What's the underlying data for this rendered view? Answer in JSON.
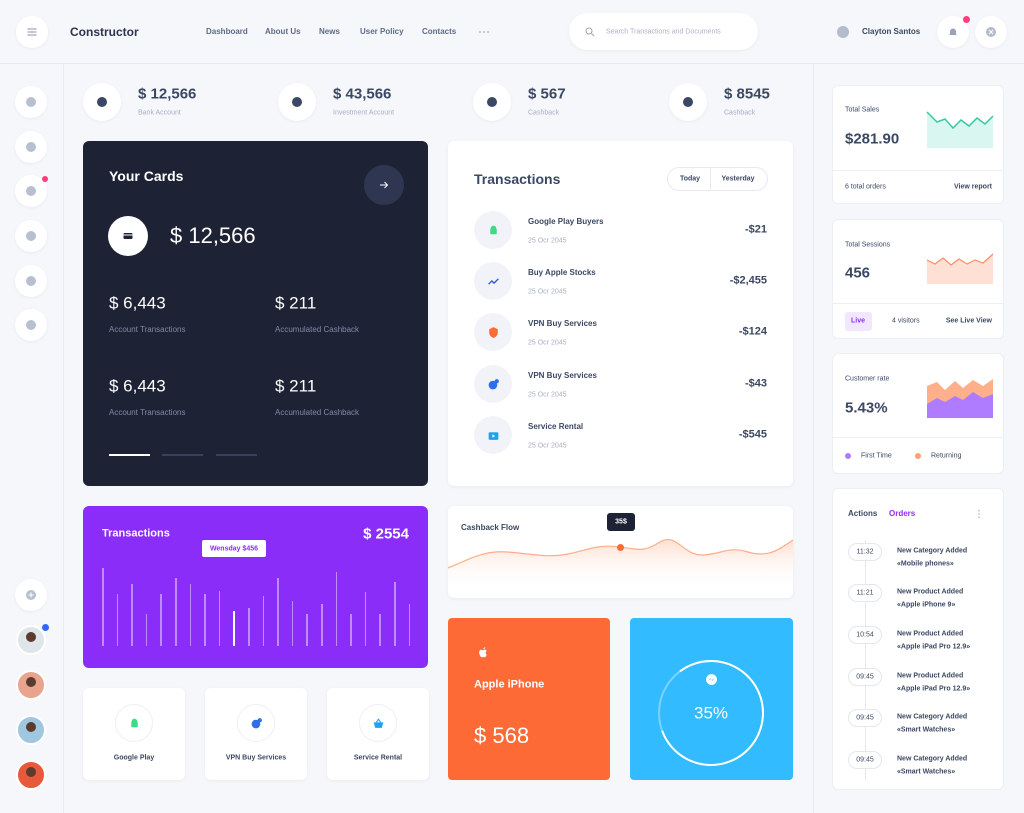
{
  "header": {
    "brand": "Constructor",
    "nav": [
      "Dashboard",
      "About Us",
      "News",
      "User Policy",
      "Contacts"
    ],
    "search_placeholder": "Search Transactions and Documents",
    "user": "Clayton Santos"
  },
  "stats": [
    {
      "value": "$ 12,566",
      "label": "Bank Account"
    },
    {
      "value": "$ 43,566",
      "label": "Investment Account"
    },
    {
      "value": "$ 567",
      "label": "Cashback"
    },
    {
      "value": "$ 8545",
      "label": "Cashback"
    }
  ],
  "cards": {
    "title": "Your Cards",
    "balance": "$ 12,566",
    "items": [
      {
        "value": "$ 6,443",
        "label": "Account Transactions"
      },
      {
        "value": "$ 211",
        "label": "Accumulated Cashback"
      },
      {
        "value": "$ 6,443",
        "label": "Account Transactions"
      },
      {
        "value": "$ 211",
        "label": "Accumulated Cashback"
      }
    ]
  },
  "transactions": {
    "title": "Transactions",
    "tabs": [
      "Today",
      "Yesterday"
    ],
    "rows": [
      {
        "name": "Google Play Buyers",
        "date": "25 Ocr 2045",
        "amount": "-$21"
      },
      {
        "name": "Buy Apple Stocks",
        "date": "25 Ocr 2045",
        "amount": "-$2,455"
      },
      {
        "name": "VPN Buy Services",
        "date": "25 Ocr 2045",
        "amount": "-$124"
      },
      {
        "name": "VPN Buy Services",
        "date": "25 Ocr 2045",
        "amount": "-$43"
      },
      {
        "name": "Service Rental",
        "date": "25 Ocr 2045",
        "amount": "-$545"
      }
    ]
  },
  "weekly": {
    "title": "Transactions",
    "total": "$ 2554",
    "tooltip": "Wensday $456"
  },
  "cashback_flow": {
    "title": "Cashback Flow",
    "tooltip": "35$"
  },
  "shortcuts": [
    "Google Play",
    "VPN Buy Services",
    "Service Rental"
  ],
  "apple": {
    "title": "Apple iPhone",
    "amount": "$ 568"
  },
  "messenger": {
    "percent": "35%"
  },
  "sales": {
    "title": "Total Sales",
    "value": "$281.90",
    "orders": "6 total orders",
    "link": "View report"
  },
  "sessions": {
    "title": "Total Sessions",
    "value": "456",
    "live": "Live",
    "visitors": "4 visitors",
    "link": "See Live View"
  },
  "customers": {
    "title": "Customer rate",
    "value": "5.43%",
    "legend": [
      "First Time",
      "Returning"
    ]
  },
  "activity": {
    "tabs": [
      "Actions",
      "Orders"
    ],
    "items": [
      {
        "time": "11:32",
        "title": "New Category Added",
        "subtitle": "«Mobile phones»"
      },
      {
        "time": "11:21",
        "title": "New Product Added",
        "subtitle": "«Apple iPhone 9»"
      },
      {
        "time": "10:54",
        "title": "New Product Added",
        "subtitle": "«Apple iPad Pro 12.9»"
      },
      {
        "time": "09:45",
        "title": "New Product Added",
        "subtitle": "«Apple iPad Pro 12.9»"
      },
      {
        "time": "09:45",
        "title": "New Category Added",
        "subtitle": "«Smart Watches»"
      },
      {
        "time": "09:45",
        "title": "New Category Added",
        "subtitle": "«Smart Watches»"
      }
    ]
  }
}
